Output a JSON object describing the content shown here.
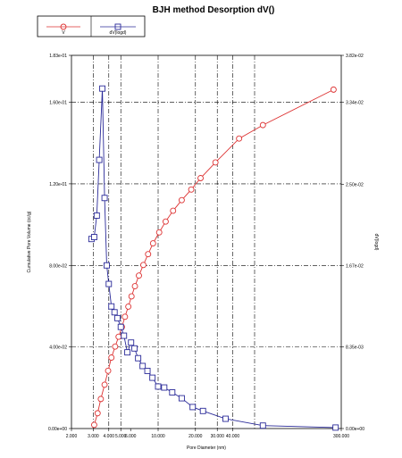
{
  "chart_data": {
    "type": "line",
    "title": "BJH method Desorption  dV()",
    "xlabel": "Pore Diameter (nm)",
    "ylabel_left": "Cumulative Pore Volume (cc/g)",
    "ylabel_right": "dV(logd)",
    "x_scale": "log",
    "xlim": [
      2.0,
      300.0
    ],
    "ylim_left": [
      0,
      0.183
    ],
    "ylim_right": [
      0,
      0.0382
    ],
    "grid": true,
    "legend_placement": "top-left",
    "x_ticks": [
      {
        "value": 2.0,
        "label": "2.000"
      },
      {
        "value": 3.0,
        "label": "3.000"
      },
      {
        "value": 4.0,
        "label": "4.000"
      },
      {
        "value": 5.0,
        "label": "5.000"
      },
      {
        "value": 6.0,
        "label": "6.000"
      },
      {
        "value": 10.0,
        "label": "10.000"
      },
      {
        "value": 20.0,
        "label": "20.000"
      },
      {
        "value": 30.0,
        "label": "30.000"
      },
      {
        "value": 40.0,
        "label": "40.000"
      },
      {
        "value": 300.0,
        "label": "300.000"
      }
    ],
    "x_gridlines": [
      3.0,
      4.0,
      5.0,
      10.0,
      20.0,
      30.0,
      40.0,
      60.0
    ],
    "y_left_ticks": [
      {
        "value": 0,
        "label": "0.00e+00"
      },
      {
        "value": 0.04,
        "label": "4.00e-02"
      },
      {
        "value": 0.08,
        "label": "8.00e-02"
      },
      {
        "value": 0.12,
        "label": "1.20e-01"
      },
      {
        "value": 0.16,
        "label": "1.60e-01"
      },
      {
        "value": 0.183,
        "label": "1.83e-01"
      }
    ],
    "y_right_ticks": [
      {
        "value": 0,
        "label": "0.00e+00"
      },
      {
        "value": 0.00835,
        "label": "8.35e-03"
      },
      {
        "value": 0.0167,
        "label": "1.67e-02"
      },
      {
        "value": 0.025,
        "label": "2.50e-02"
      },
      {
        "value": 0.0334,
        "label": "3.34e-02"
      },
      {
        "value": 0.0382,
        "label": "3.82e-02"
      }
    ],
    "series": [
      {
        "name": "V",
        "axis": "left",
        "color": "#dd3333",
        "marker": "circle",
        "points": [
          [
            3.05,
            0.0018
          ],
          [
            3.25,
            0.0075
          ],
          [
            3.45,
            0.0145
          ],
          [
            3.7,
            0.0215
          ],
          [
            3.95,
            0.0283
          ],
          [
            4.2,
            0.0348
          ],
          [
            4.5,
            0.0402
          ],
          [
            4.8,
            0.045
          ],
          [
            5.1,
            0.0498
          ],
          [
            5.4,
            0.0548
          ],
          [
            5.75,
            0.0598
          ],
          [
            6.1,
            0.0648
          ],
          [
            6.5,
            0.0698
          ],
          [
            7.0,
            0.075
          ],
          [
            7.6,
            0.0802
          ],
          [
            8.3,
            0.0855
          ],
          [
            9.1,
            0.0908
          ],
          [
            10.2,
            0.0962
          ],
          [
            11.5,
            0.1015
          ],
          [
            13.2,
            0.1068
          ],
          [
            15.5,
            0.112
          ],
          [
            18.5,
            0.1172
          ],
          [
            22.0,
            0.1228
          ],
          [
            29.0,
            0.1305
          ],
          [
            45.0,
            0.1422
          ],
          [
            70.0,
            0.1488
          ],
          [
            260.0,
            0.1662
          ]
        ]
      },
      {
        "name": "dV(logd)",
        "axis": "right",
        "color": "#2b2b99",
        "marker": "square",
        "points": [
          [
            2.9,
            0.0194
          ],
          [
            3.05,
            0.0196
          ],
          [
            3.2,
            0.0218
          ],
          [
            3.35,
            0.0275
          ],
          [
            3.55,
            0.0348
          ],
          [
            3.7,
            0.0236
          ],
          [
            3.85,
            0.0167
          ],
          [
            4.0,
            0.0148
          ],
          [
            4.2,
            0.0125
          ],
          [
            4.45,
            0.0119
          ],
          [
            4.7,
            0.0113
          ],
          [
            5.0,
            0.0104
          ],
          [
            5.3,
            0.0095
          ],
          [
            5.65,
            0.0078
          ],
          [
            6.05,
            0.0088
          ],
          [
            6.45,
            0.0082
          ],
          [
            6.9,
            0.0072
          ],
          [
            7.5,
            0.0064
          ],
          [
            8.2,
            0.0059
          ],
          [
            9.0,
            0.0052
          ],
          [
            10.0,
            0.0043
          ],
          [
            11.2,
            0.0042
          ],
          [
            13.0,
            0.0037
          ],
          [
            15.5,
            0.0031
          ],
          [
            19.0,
            0.0022
          ],
          [
            23.0,
            0.0018
          ],
          [
            35.0,
            0.001
          ],
          [
            70.0,
            0.0003
          ],
          [
            270.0,
            0.0001
          ]
        ]
      }
    ]
  }
}
